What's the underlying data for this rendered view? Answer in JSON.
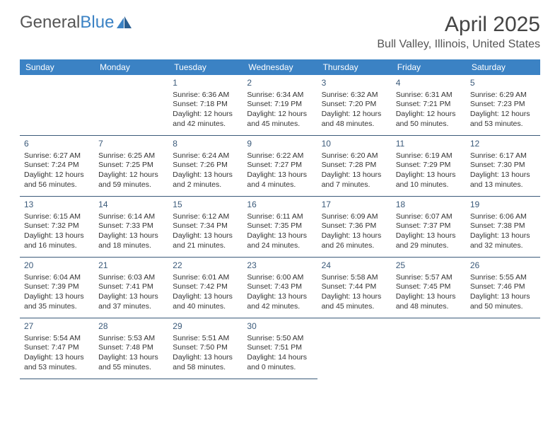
{
  "brand": {
    "part1": "General",
    "part2": "Blue"
  },
  "title": "April 2025",
  "location": "Bull Valley, Illinois, United States",
  "colors": {
    "accent": "#3b82c4",
    "rule": "#3b5a7a",
    "text": "#333333",
    "title": "#444444",
    "background": "#ffffff"
  },
  "calendar": {
    "type": "table",
    "day_headers": [
      "Sunday",
      "Monday",
      "Tuesday",
      "Wednesday",
      "Thursday",
      "Friday",
      "Saturday"
    ],
    "header_bg": "#3b82c4",
    "header_fg": "#ffffff",
    "header_fontsize": 12,
    "cell_fontsize": 10.5,
    "daynum_color": "#3b5a7a",
    "leading_blanks": 2,
    "days": [
      {
        "n": "1",
        "sunrise": "Sunrise: 6:36 AM",
        "sunset": "Sunset: 7:18 PM",
        "daylight": "Daylight: 12 hours and 42 minutes."
      },
      {
        "n": "2",
        "sunrise": "Sunrise: 6:34 AM",
        "sunset": "Sunset: 7:19 PM",
        "daylight": "Daylight: 12 hours and 45 minutes."
      },
      {
        "n": "3",
        "sunrise": "Sunrise: 6:32 AM",
        "sunset": "Sunset: 7:20 PM",
        "daylight": "Daylight: 12 hours and 48 minutes."
      },
      {
        "n": "4",
        "sunrise": "Sunrise: 6:31 AM",
        "sunset": "Sunset: 7:21 PM",
        "daylight": "Daylight: 12 hours and 50 minutes."
      },
      {
        "n": "5",
        "sunrise": "Sunrise: 6:29 AM",
        "sunset": "Sunset: 7:23 PM",
        "daylight": "Daylight: 12 hours and 53 minutes."
      },
      {
        "n": "6",
        "sunrise": "Sunrise: 6:27 AM",
        "sunset": "Sunset: 7:24 PM",
        "daylight": "Daylight: 12 hours and 56 minutes."
      },
      {
        "n": "7",
        "sunrise": "Sunrise: 6:25 AM",
        "sunset": "Sunset: 7:25 PM",
        "daylight": "Daylight: 12 hours and 59 minutes."
      },
      {
        "n": "8",
        "sunrise": "Sunrise: 6:24 AM",
        "sunset": "Sunset: 7:26 PM",
        "daylight": "Daylight: 13 hours and 2 minutes."
      },
      {
        "n": "9",
        "sunrise": "Sunrise: 6:22 AM",
        "sunset": "Sunset: 7:27 PM",
        "daylight": "Daylight: 13 hours and 4 minutes."
      },
      {
        "n": "10",
        "sunrise": "Sunrise: 6:20 AM",
        "sunset": "Sunset: 7:28 PM",
        "daylight": "Daylight: 13 hours and 7 minutes."
      },
      {
        "n": "11",
        "sunrise": "Sunrise: 6:19 AM",
        "sunset": "Sunset: 7:29 PM",
        "daylight": "Daylight: 13 hours and 10 minutes."
      },
      {
        "n": "12",
        "sunrise": "Sunrise: 6:17 AM",
        "sunset": "Sunset: 7:30 PM",
        "daylight": "Daylight: 13 hours and 13 minutes."
      },
      {
        "n": "13",
        "sunrise": "Sunrise: 6:15 AM",
        "sunset": "Sunset: 7:32 PM",
        "daylight": "Daylight: 13 hours and 16 minutes."
      },
      {
        "n": "14",
        "sunrise": "Sunrise: 6:14 AM",
        "sunset": "Sunset: 7:33 PM",
        "daylight": "Daylight: 13 hours and 18 minutes."
      },
      {
        "n": "15",
        "sunrise": "Sunrise: 6:12 AM",
        "sunset": "Sunset: 7:34 PM",
        "daylight": "Daylight: 13 hours and 21 minutes."
      },
      {
        "n": "16",
        "sunrise": "Sunrise: 6:11 AM",
        "sunset": "Sunset: 7:35 PM",
        "daylight": "Daylight: 13 hours and 24 minutes."
      },
      {
        "n": "17",
        "sunrise": "Sunrise: 6:09 AM",
        "sunset": "Sunset: 7:36 PM",
        "daylight": "Daylight: 13 hours and 26 minutes."
      },
      {
        "n": "18",
        "sunrise": "Sunrise: 6:07 AM",
        "sunset": "Sunset: 7:37 PM",
        "daylight": "Daylight: 13 hours and 29 minutes."
      },
      {
        "n": "19",
        "sunrise": "Sunrise: 6:06 AM",
        "sunset": "Sunset: 7:38 PM",
        "daylight": "Daylight: 13 hours and 32 minutes."
      },
      {
        "n": "20",
        "sunrise": "Sunrise: 6:04 AM",
        "sunset": "Sunset: 7:39 PM",
        "daylight": "Daylight: 13 hours and 35 minutes."
      },
      {
        "n": "21",
        "sunrise": "Sunrise: 6:03 AM",
        "sunset": "Sunset: 7:41 PM",
        "daylight": "Daylight: 13 hours and 37 minutes."
      },
      {
        "n": "22",
        "sunrise": "Sunrise: 6:01 AM",
        "sunset": "Sunset: 7:42 PM",
        "daylight": "Daylight: 13 hours and 40 minutes."
      },
      {
        "n": "23",
        "sunrise": "Sunrise: 6:00 AM",
        "sunset": "Sunset: 7:43 PM",
        "daylight": "Daylight: 13 hours and 42 minutes."
      },
      {
        "n": "24",
        "sunrise": "Sunrise: 5:58 AM",
        "sunset": "Sunset: 7:44 PM",
        "daylight": "Daylight: 13 hours and 45 minutes."
      },
      {
        "n": "25",
        "sunrise": "Sunrise: 5:57 AM",
        "sunset": "Sunset: 7:45 PM",
        "daylight": "Daylight: 13 hours and 48 minutes."
      },
      {
        "n": "26",
        "sunrise": "Sunrise: 5:55 AM",
        "sunset": "Sunset: 7:46 PM",
        "daylight": "Daylight: 13 hours and 50 minutes."
      },
      {
        "n": "27",
        "sunrise": "Sunrise: 5:54 AM",
        "sunset": "Sunset: 7:47 PM",
        "daylight": "Daylight: 13 hours and 53 minutes."
      },
      {
        "n": "28",
        "sunrise": "Sunrise: 5:53 AM",
        "sunset": "Sunset: 7:48 PM",
        "daylight": "Daylight: 13 hours and 55 minutes."
      },
      {
        "n": "29",
        "sunrise": "Sunrise: 5:51 AM",
        "sunset": "Sunset: 7:50 PM",
        "daylight": "Daylight: 13 hours and 58 minutes."
      },
      {
        "n": "30",
        "sunrise": "Sunrise: 5:50 AM",
        "sunset": "Sunset: 7:51 PM",
        "daylight": "Daylight: 14 hours and 0 minutes."
      }
    ]
  }
}
